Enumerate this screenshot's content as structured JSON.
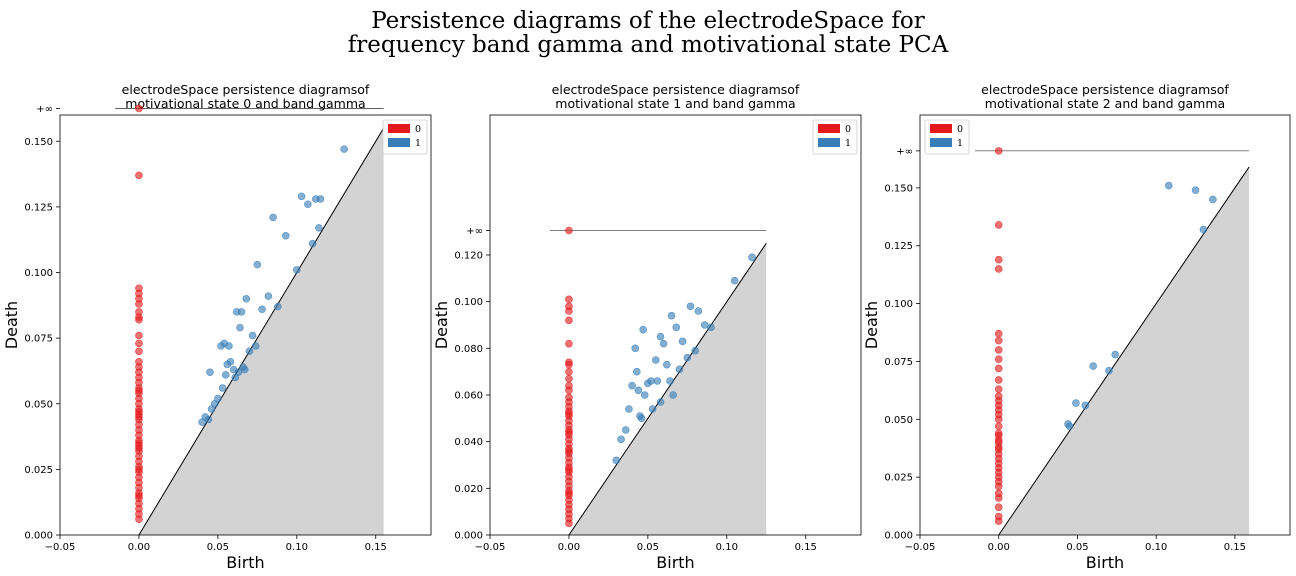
{
  "figure": {
    "suptitle_line1": "Persistence diagrams of the electrodeSpace for",
    "suptitle_line2": "frequency band gamma and motivational state PCA"
  },
  "colors": {
    "h0": "#e41a1c",
    "h1": "#377eb8",
    "diagonal_fill": "#d3d3d3"
  },
  "chart_data": [
    {
      "type": "scatter",
      "title_line1": "electrodeSpace persistence diagramsof",
      "title_line2": "motivational state 0 and band gamma",
      "xlabel": "Birth",
      "ylabel": "Death",
      "xlim": [
        -0.05,
        0.185
      ],
      "ylim": [
        0.0,
        0.16
      ],
      "xticks": [
        -0.05,
        0.0,
        0.05,
        0.1,
        0.15
      ],
      "xtick_labels": [
        "−0.05",
        "0.00",
        "0.05",
        "0.10",
        "0.15"
      ],
      "yticks": [
        0.0,
        0.025,
        0.05,
        0.075,
        0.1,
        0.125,
        0.15
      ],
      "ytick_labels": [
        "0.000",
        "0.025",
        "0.050",
        "0.075",
        "0.100",
        "0.125",
        "0.150"
      ],
      "inf_value": 0.1625,
      "inf_label": "+∞",
      "inf_line_x": [
        -0.015,
        0.155
      ],
      "diagonal_max": 0.155,
      "legend": [
        "0",
        "1"
      ],
      "series": [
        {
          "name": "0",
          "x": [
            0,
            0,
            0,
            0,
            0,
            0,
            0,
            0,
            0,
            0,
            0,
            0,
            0,
            0,
            0,
            0,
            0,
            0,
            0,
            0,
            0,
            0,
            0,
            0,
            0,
            0,
            0,
            0,
            0,
            0,
            0,
            0,
            0,
            0,
            0,
            0,
            0,
            0,
            0,
            0,
            0,
            0,
            0,
            0,
            0,
            0,
            0,
            0,
            0,
            0
          ],
          "y": [
            0.1625,
            0.137,
            0.094,
            0.092,
            0.09,
            0.088,
            0.085,
            0.083,
            0.082,
            0.076,
            0.073,
            0.07,
            0.066,
            0.064,
            0.062,
            0.06,
            0.058,
            0.056,
            0.054,
            0.052,
            0.05,
            0.048,
            0.046,
            0.044,
            0.042,
            0.04,
            0.038,
            0.036,
            0.034,
            0.032,
            0.03,
            0.028,
            0.026,
            0.024,
            0.022,
            0.02,
            0.018,
            0.016,
            0.014,
            0.012,
            0.01,
            0.008,
            0.006,
            0.055,
            0.045,
            0.035,
            0.025,
            0.015,
            0.047,
            0.033
          ]
        },
        {
          "name": "1",
          "x": [
            0.13,
            0.112,
            0.115,
            0.103,
            0.107,
            0.114,
            0.11,
            0.085,
            0.093,
            0.075,
            0.1,
            0.068,
            0.062,
            0.078,
            0.065,
            0.082,
            0.088,
            0.057,
            0.054,
            0.052,
            0.064,
            0.072,
            0.058,
            0.056,
            0.06,
            0.063,
            0.066,
            0.07,
            0.074,
            0.045,
            0.048,
            0.05,
            0.053,
            0.042,
            0.04,
            0.044,
            0.046,
            0.055,
            0.061,
            0.067
          ],
          "y": [
            0.147,
            0.128,
            0.128,
            0.129,
            0.126,
            0.117,
            0.111,
            0.121,
            0.114,
            0.103,
            0.101,
            0.09,
            0.085,
            0.086,
            0.085,
            0.091,
            0.087,
            0.072,
            0.073,
            0.072,
            0.079,
            0.076,
            0.066,
            0.065,
            0.063,
            0.062,
            0.064,
            0.07,
            0.072,
            0.062,
            0.05,
            0.052,
            0.056,
            0.045,
            0.043,
            0.044,
            0.048,
            0.061,
            0.06,
            0.063
          ]
        }
      ]
    },
    {
      "type": "scatter",
      "title_line1": "electrodeSpace persistence diagramsof",
      "title_line2": "motivational state 1 and band gamma",
      "xlabel": "Birth",
      "ylabel": "Death",
      "xlim": [
        -0.05,
        0.185
      ],
      "ylim": [
        0.0,
        0.18
      ],
      "xticks": [
        -0.05,
        0.0,
        0.05,
        0.1,
        0.15
      ],
      "xtick_labels": [
        "−0.05",
        "0.00",
        "0.05",
        "0.10",
        "0.15"
      ],
      "yticks": [
        0.0,
        0.02,
        0.04,
        0.06,
        0.08,
        0.1,
        0.12
      ],
      "ytick_labels": [
        "0.000",
        "0.020",
        "0.040",
        "0.060",
        "0.080",
        "0.100",
        "0.120"
      ],
      "inf_value": 0.1305,
      "inf_label": "+∞",
      "inf_line_x": [
        -0.012,
        0.125
      ],
      "diagonal_max": 0.125,
      "legend": [
        "0",
        "1"
      ],
      "series": [
        {
          "name": "0",
          "x": [
            0,
            0,
            0,
            0,
            0,
            0,
            0,
            0,
            0,
            0,
            0,
            0,
            0,
            0,
            0,
            0,
            0,
            0,
            0,
            0,
            0,
            0,
            0,
            0,
            0,
            0,
            0,
            0,
            0,
            0,
            0,
            0,
            0,
            0,
            0,
            0,
            0,
            0,
            0,
            0,
            0,
            0,
            0,
            0,
            0
          ],
          "y": [
            0.1305,
            0.101,
            0.098,
            0.096,
            0.092,
            0.082,
            0.074,
            0.073,
            0.07,
            0.067,
            0.064,
            0.062,
            0.059,
            0.057,
            0.055,
            0.053,
            0.051,
            0.049,
            0.047,
            0.045,
            0.043,
            0.041,
            0.039,
            0.037,
            0.035,
            0.033,
            0.031,
            0.029,
            0.027,
            0.025,
            0.023,
            0.021,
            0.019,
            0.017,
            0.015,
            0.013,
            0.011,
            0.009,
            0.007,
            0.005,
            0.052,
            0.044,
            0.036,
            0.028,
            0.018
          ]
        },
        {
          "name": "1",
          "x": [
            0.116,
            0.105,
            0.082,
            0.077,
            0.086,
            0.065,
            0.058,
            0.047,
            0.042,
            0.06,
            0.068,
            0.072,
            0.09,
            0.055,
            0.062,
            0.052,
            0.04,
            0.044,
            0.048,
            0.05,
            0.056,
            0.064,
            0.07,
            0.075,
            0.08,
            0.036,
            0.033,
            0.03,
            0.045,
            0.053,
            0.058,
            0.066,
            0.043,
            0.038,
            0.046
          ],
          "y": [
            0.119,
            0.109,
            0.096,
            0.098,
            0.09,
            0.094,
            0.085,
            0.088,
            0.08,
            0.082,
            0.089,
            0.083,
            0.089,
            0.075,
            0.073,
            0.066,
            0.064,
            0.062,
            0.06,
            0.065,
            0.066,
            0.066,
            0.071,
            0.076,
            0.079,
            0.045,
            0.041,
            0.032,
            0.051,
            0.054,
            0.057,
            0.06,
            0.07,
            0.054,
            0.05
          ]
        }
      ]
    },
    {
      "type": "scatter",
      "title_line1": "electrodeSpace persistence diagramsof",
      "title_line2": "motivational state 2 and band gamma",
      "xlabel": "Birth",
      "ylabel": "Death",
      "xlim": [
        -0.05,
        0.185
      ],
      "ylim": [
        0.0,
        0.1815
      ],
      "xticks": [
        -0.05,
        0.0,
        0.05,
        0.1,
        0.15
      ],
      "xtick_labels": [
        "−0.05",
        "0.00",
        "0.05",
        "0.10",
        "0.15"
      ],
      "yticks": [
        0.0,
        0.025,
        0.05,
        0.075,
        0.1,
        0.125,
        0.15
      ],
      "ytick_labels": [
        "0.000",
        "0.025",
        "0.050",
        "0.075",
        "0.100",
        "0.125",
        "0.150"
      ],
      "inf_value": 0.166,
      "inf_label": "+∞",
      "inf_line_x": [
        -0.015,
        0.159
      ],
      "diagonal_max": 0.159,
      "legend": [
        "0",
        "1"
      ],
      "series": [
        {
          "name": "0",
          "x": [
            0,
            0,
            0,
            0,
            0,
            0,
            0,
            0,
            0,
            0,
            0,
            0,
            0,
            0,
            0,
            0,
            0,
            0,
            0,
            0,
            0,
            0,
            0,
            0,
            0,
            0,
            0,
            0,
            0,
            0,
            0,
            0,
            0,
            0,
            0,
            0,
            0
          ],
          "y": [
            0.166,
            0.134,
            0.119,
            0.115,
            0.087,
            0.084,
            0.08,
            0.076,
            0.072,
            0.067,
            0.063,
            0.06,
            0.058,
            0.056,
            0.054,
            0.052,
            0.05,
            0.047,
            0.043,
            0.041,
            0.04,
            0.037,
            0.035,
            0.033,
            0.031,
            0.029,
            0.027,
            0.025,
            0.023,
            0.021,
            0.018,
            0.016,
            0.012,
            0.008,
            0.006,
            0.044,
            0.038
          ]
        },
        {
          "name": "1",
          "x": [
            0.108,
            0.125,
            0.136,
            0.13,
            0.074,
            0.07,
            0.06,
            0.055,
            0.049,
            0.044,
            0.045
          ],
          "y": [
            0.151,
            0.149,
            0.145,
            0.132,
            0.078,
            0.071,
            0.073,
            0.056,
            0.057,
            0.048,
            0.047
          ]
        }
      ]
    }
  ]
}
